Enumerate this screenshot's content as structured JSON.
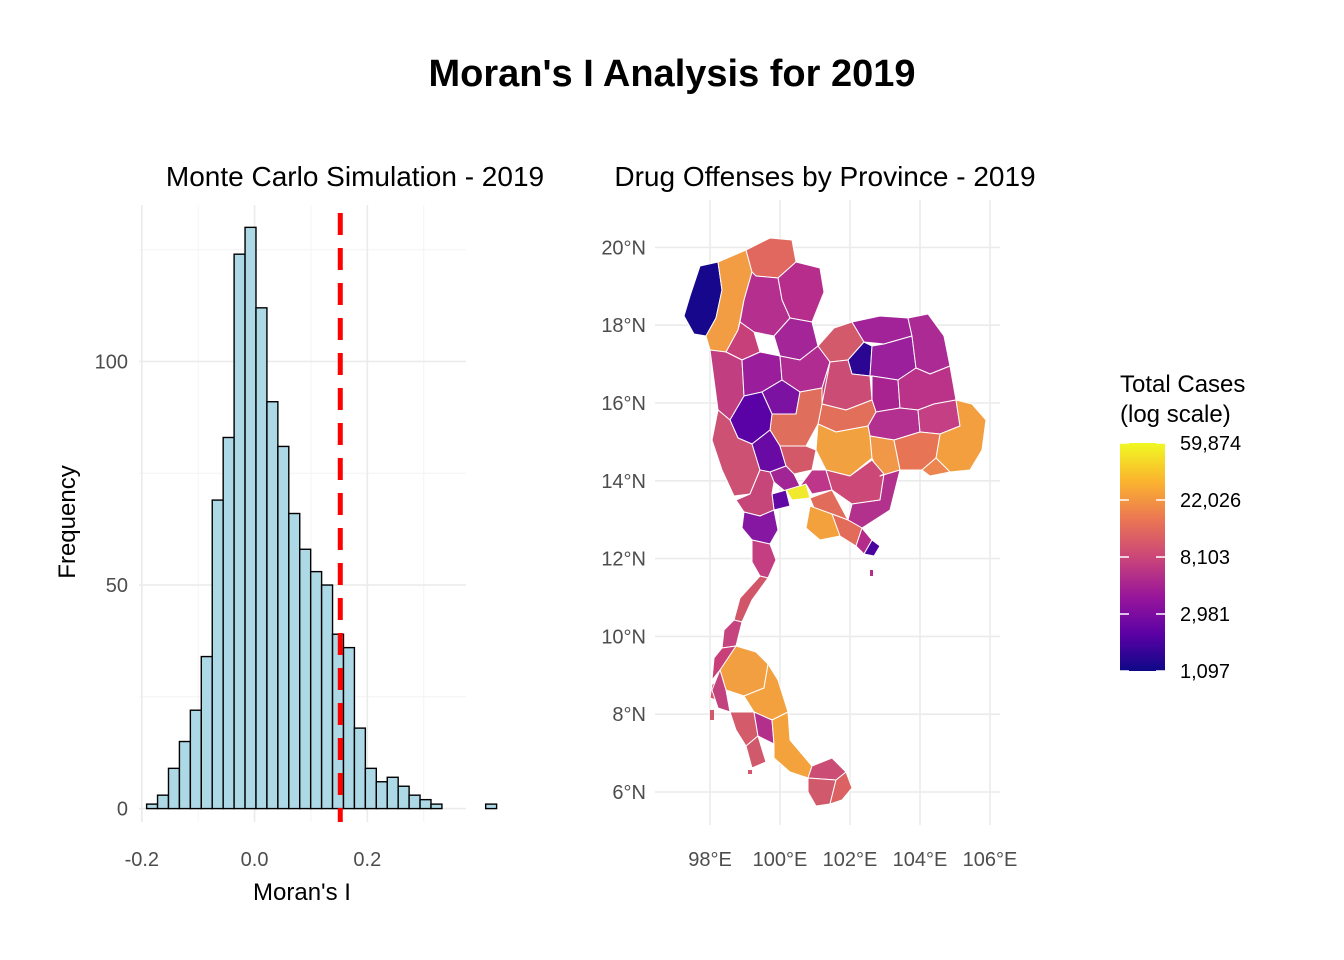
{
  "figure": {
    "title": "Moran's I Analysis for 2019"
  },
  "chart_data": [
    {
      "type": "histogram",
      "title": "Monte Carlo Simulation - 2019",
      "xlabel": "Moran's I",
      "ylabel": "Frequency",
      "xlim": [
        -0.205,
        0.375
      ],
      "ylim": [
        -3,
        135
      ],
      "x_ticks": [
        "-0.2",
        "0.0",
        "0.2"
      ],
      "x_tick_values": [
        -0.2,
        0.0,
        0.2
      ],
      "y_ticks": [
        "0",
        "50",
        "100"
      ],
      "y_tick_values": [
        0,
        50,
        100
      ],
      "bin_width": 0.0194,
      "bin_start": -0.1915,
      "counts": [
        1,
        3,
        9,
        15,
        22,
        34,
        69,
        83,
        124,
        130,
        112,
        91,
        81,
        66,
        58,
        53,
        50,
        39,
        36,
        18,
        9,
        6,
        7,
        5,
        3,
        2,
        1,
        0,
        0,
        0,
        0,
        1
      ],
      "bar_fill": "#add8e6",
      "bar_stroke": "#000000",
      "observed_value": 0.152,
      "observed_line_color": "#ff0000",
      "grid": true
    },
    {
      "type": "choropleth",
      "title": "Drug Offenses by Province - 2019",
      "x_ticks": [
        "98°E",
        "100°E",
        "102°E",
        "104°E",
        "106°E"
      ],
      "x_tick_values": [
        98,
        100,
        102,
        104,
        106
      ],
      "y_ticks": [
        "6°N",
        "8°N",
        "10°N",
        "12°N",
        "14°N",
        "16°N",
        "18°N",
        "20°N"
      ],
      "y_tick_values": [
        6,
        8,
        10,
        12,
        14,
        16,
        18,
        20
      ],
      "xlim": [
        96.8,
        106.9
      ],
      "ylim": [
        5.0,
        20.9
      ],
      "grid": true,
      "legend": {
        "title_line1": "Total Cases",
        "title_line2": "(log scale)",
        "labels": [
          "59,874",
          "22,026",
          "8,103",
          "2,981",
          "1,097"
        ],
        "values": [
          59874,
          22026,
          8103,
          2981,
          1097
        ],
        "min": 1097,
        "max": 59874,
        "scale": "log",
        "colormap": "plasma",
        "colors": [
          "#0d0887",
          "#5b01a5",
          "#9a179b",
          "#cb4678",
          "#eb7852",
          "#fbb32f",
          "#f0f921"
        ],
        "placement": "right"
      }
    }
  ]
}
